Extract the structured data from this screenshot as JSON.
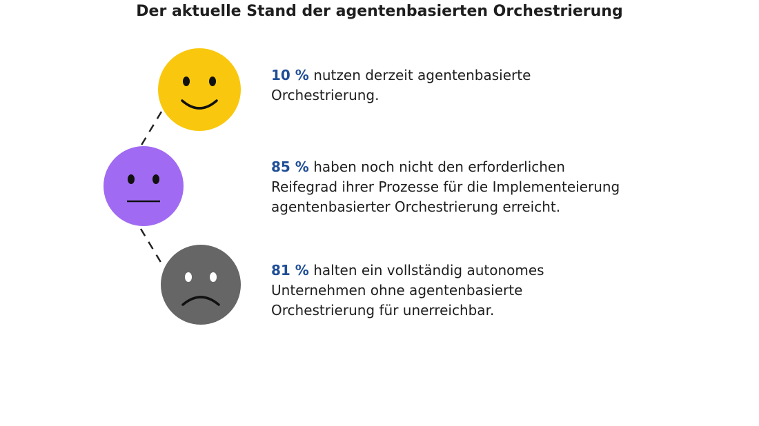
{
  "title": "Der aktuelle Stand der agentenbasierten Orchestrierung",
  "items": [
    {
      "stat": "10 %",
      "lines": [
        "nutzen derzeit agentenbasierte",
        "Orchestrierung."
      ]
    },
    {
      "stat": "85 %",
      "lines": [
        "haben noch nicht den erforderlichen",
        "Reifegrad ihrer Prozesse für die Implementeierung",
        "agentenbasierter Orchestrierung erreicht."
      ]
    },
    {
      "stat": "81 %",
      "lines": [
        "halten ein vollständig autonomes",
        "Unternehmen ohne agentenbasierte",
        "Orchestrierung für unerreichbar."
      ]
    }
  ]
}
